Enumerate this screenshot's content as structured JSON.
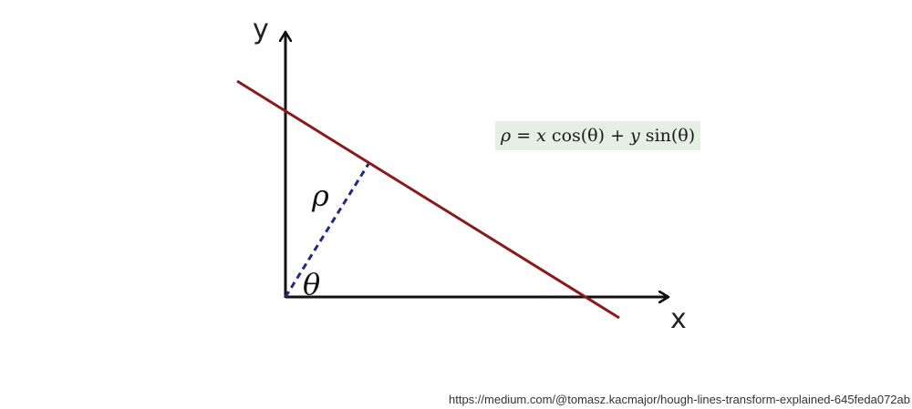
{
  "diagram": {
    "axes": {
      "x_label": "x",
      "y_label": "y"
    },
    "labels": {
      "rho": "ρ",
      "theta": "θ"
    },
    "formula": {
      "rho": "ρ",
      "equals": " = ",
      "x": "x",
      "cos_part": " cos(θ) + ",
      "y": "y",
      "sin_part": " sin(θ)"
    },
    "colors": {
      "line": "#8b1a1a",
      "perpendicular": "#1f2a80",
      "axes": "#111111",
      "formula_background": "#e6efe4"
    }
  },
  "source": {
    "url": "https://medium.com/@tomasz.kacmajor/hough-lines-transform-explained-645feda072ab"
  }
}
